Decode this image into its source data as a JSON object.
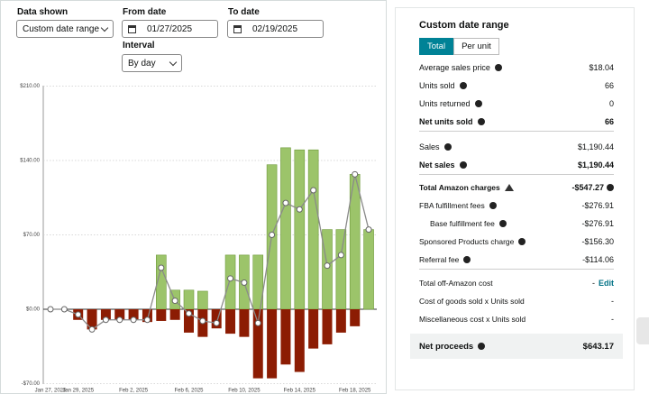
{
  "controls": {
    "data_shown": {
      "label": "Data shown",
      "value": "Custom date range"
    },
    "from_date": {
      "label": "From date",
      "value": "01/27/2025"
    },
    "to_date": {
      "label": "To date",
      "value": "02/19/2025"
    },
    "interval": {
      "label": "Interval",
      "value": "By day"
    }
  },
  "chart_data": {
    "type": "bar",
    "categories": [
      "Jan 27, 2025",
      null,
      "Jan 29, 2025",
      null,
      null,
      null,
      "Feb 2, 2025",
      null,
      null,
      null,
      "Feb 6, 2025",
      null,
      null,
      null,
      "Feb 10, 2025",
      null,
      null,
      null,
      "Feb 14, 2025",
      null,
      null,
      null,
      "Feb 18, 2025",
      null
    ],
    "series": [
      {
        "type": "bar",
        "color": "#9cc46a",
        "values": [
          0,
          0,
          0,
          0,
          0,
          0,
          0,
          0,
          51,
          18,
          18,
          17,
          0,
          51,
          51,
          51,
          136,
          152,
          150,
          150,
          75,
          75,
          127,
          75
        ]
      },
      {
        "type": "bar",
        "color": "#8c1c03",
        "values": [
          0,
          0,
          -10,
          -19,
          -10,
          -10,
          -10,
          -12,
          -11,
          -10,
          -22,
          -26,
          -18,
          -23,
          -26,
          -65,
          -65,
          -52,
          -59,
          -37,
          -33,
          -22,
          -16,
          0
        ]
      },
      {
        "type": "line",
        "color": "#8a8a8a",
        "values": [
          0,
          0,
          -5,
          -19,
          -10,
          -10,
          -10,
          -10,
          39,
          8,
          -4,
          -11,
          -13,
          29,
          25,
          -13,
          70,
          100,
          94,
          112,
          41,
          51,
          127,
          75
        ]
      }
    ],
    "ylim": [
      -70,
      210
    ],
    "yticks": [
      {
        "value": -70,
        "label": "-$70.00"
      },
      {
        "value": 0,
        "label": "$0.00"
      },
      {
        "value": 70,
        "label": "$70.00"
      },
      {
        "value": 140,
        "label": "$140.00"
      },
      {
        "value": 210,
        "label": "$210.00"
      }
    ],
    "grid": true
  },
  "summary": {
    "title": "Custom date range",
    "tabs": [
      "Total",
      "Per unit"
    ],
    "rows": [
      {
        "label": "Average sales price",
        "value": "$18.04"
      },
      {
        "label": "Units sold",
        "value": "66"
      },
      {
        "label": "Units returned",
        "value": "0"
      },
      {
        "label": "Net units sold",
        "value": "66"
      },
      {
        "label": "Sales",
        "value": "$1,190.44"
      },
      {
        "label": "Net sales",
        "value": "$1,190.44"
      },
      {
        "label": "Total Amazon charges",
        "value": "-$547.27"
      },
      {
        "label": "FBA fulfillment fees",
        "value": "-$276.91"
      },
      {
        "label": "Base fulfillment fee",
        "value": "-$276.91"
      },
      {
        "label": "Sponsored Products charge",
        "value": "-$156.30"
      },
      {
        "label": "Referral fee",
        "value": "-$114.06"
      },
      {
        "label": "Total off-Amazon cost",
        "value": "-",
        "action": "Edit"
      },
      {
        "label": "Cost of goods sold x Units sold",
        "value": "-"
      },
      {
        "label": "Miscellaneous cost x Units sold",
        "value": "-"
      }
    ],
    "net_proceeds": {
      "label": "Net proceeds",
      "value": "$643.17"
    }
  }
}
